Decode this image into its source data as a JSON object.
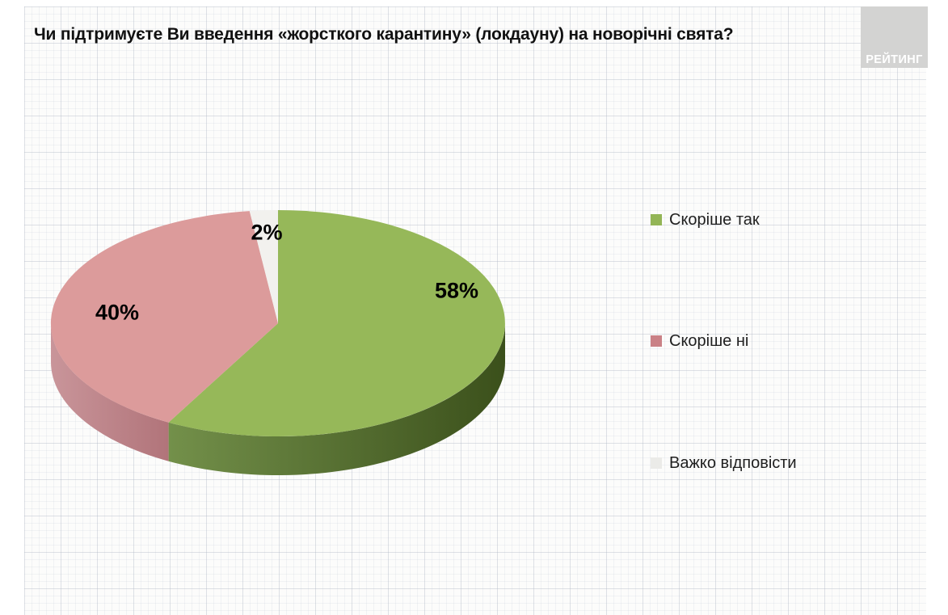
{
  "title": "Чи підтримуєте Ви введення «жорсткого карантину» (локдауну) на новорічні свята?",
  "logo": {
    "text": "РЕЙТИНГ"
  },
  "chart_data": {
    "type": "pie",
    "title": "Чи підтримуєте Ви введення «жорсткого карантину» (локдауну) на новорічні свята?",
    "labels": [
      "Скоріше так",
      "Скоріше ні",
      "Важко відповісти"
    ],
    "values": [
      58,
      40,
      2
    ],
    "value_labels": [
      "58%",
      "40%",
      "2%"
    ],
    "colors": [
      "#96b859",
      "#dc9b9b",
      "#f2f1ee"
    ],
    "side_colors": [
      [
        "#73904a",
        "#3b501b"
      ],
      [
        "#c9959a",
        "#b1747a"
      ],
      [
        "#d9d9d6",
        "#d9d9d6"
      ]
    ],
    "legend_colors": [
      "#93b556",
      "#ca8186",
      "#ebebe8"
    ],
    "start_angle_deg": 0,
    "direction": "clockwise",
    "effect": "3d",
    "legend_position": "right"
  }
}
